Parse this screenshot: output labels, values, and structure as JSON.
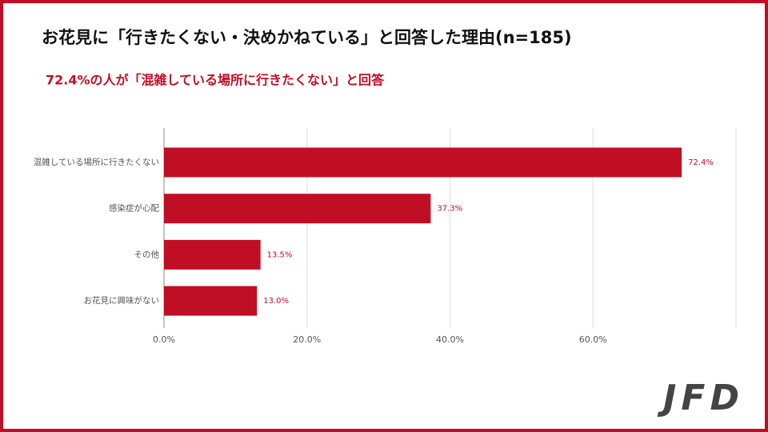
{
  "title": "お花見に「行きたくない・決めかねている」と回答した理由(n=185)",
  "subtitle": "72.4%の人が「混雑している場所に行きたくない」と回答",
  "logo": "JFD",
  "chart_data": {
    "type": "hbar",
    "categories": [
      "混雑している場所に行きたくない",
      "感染症が心配",
      "その他",
      "お花見に興味がない"
    ],
    "values": [
      72.4,
      37.3,
      13.5,
      13.0
    ],
    "value_labels": [
      "72.4%",
      "37.3%",
      "13.5%",
      "13.0%"
    ],
    "color": "#c00f24",
    "xlim": [
      0,
      80
    ],
    "xticks": [
      {
        "value": 0,
        "label": "0.0%"
      },
      {
        "value": 20,
        "label": "20.0%"
      },
      {
        "value": 40,
        "label": "40.0%"
      },
      {
        "value": 60,
        "label": "60.0%"
      }
    ],
    "grid": true
  }
}
